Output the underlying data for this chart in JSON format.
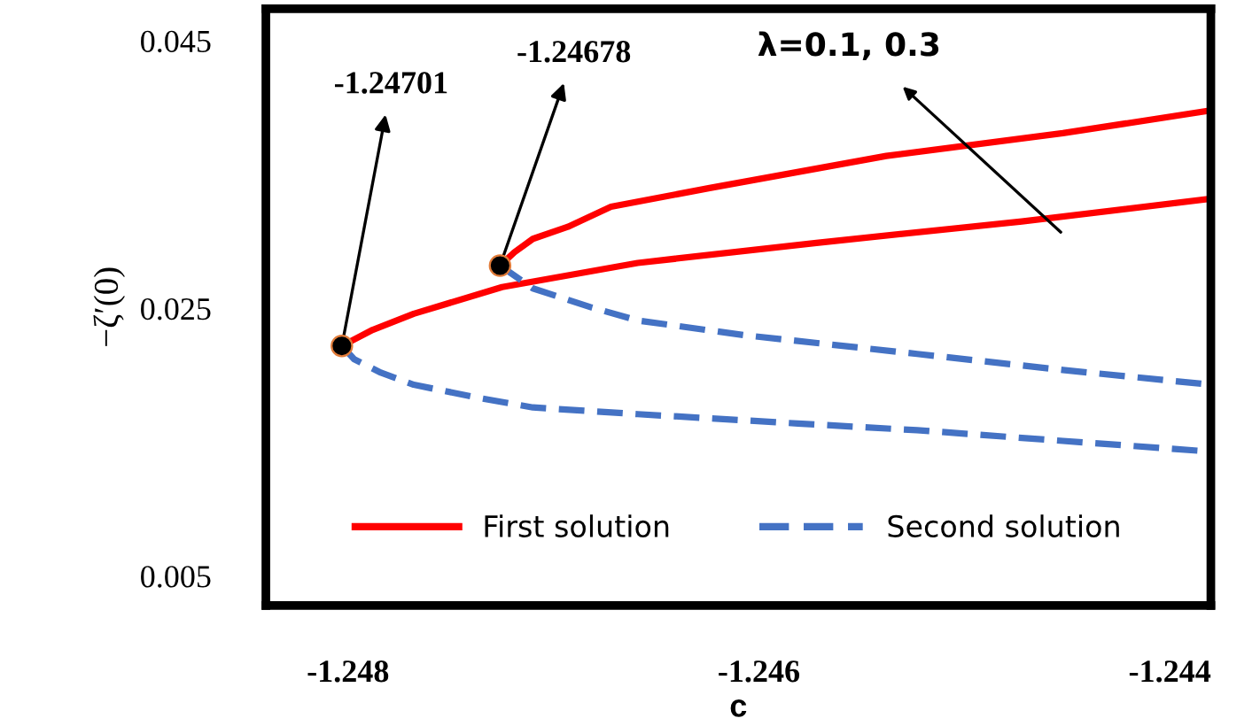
{
  "chart_data": {
    "type": "line",
    "xlabel": "c",
    "ylabel": "−ζ′(0)",
    "xlim": [
      -1.2484,
      -1.2438
    ],
    "xticks": [
      -1.248,
      -1.246,
      -1.244
    ],
    "ylim": [
      0.0028,
      0.0474
    ],
    "yticks": [
      0.045,
      0.025,
      0.005
    ],
    "series": [
      {
        "name": "First solution",
        "color": "#ff0000",
        "line_style": "solid",
        "x": [
          -1.24803,
          -1.24788,
          -1.24768,
          -1.24725,
          -1.24659,
          -1.24572,
          -1.24472,
          -1.2438
        ],
        "values": [
          0.0222,
          0.0234,
          0.0246,
          0.0266,
          0.0284,
          0.0299,
          0.0315,
          0.0332
        ]
      },
      {
        "color": "#ff0000",
        "line_style": "solid",
        "x": [
          -1.24726,
          -1.24719,
          -1.2471,
          -1.24693,
          -1.24672,
          -1.24624,
          -1.24538,
          -1.24452,
          -1.2438
        ],
        "values": [
          0.0282,
          0.0292,
          0.0302,
          0.0311,
          0.0326,
          0.034,
          0.0364,
          0.0381,
          0.0398
        ]
      },
      {
        "name": "Second solution",
        "color": "#4472c4",
        "line_style": "dashed",
        "x": [
          -1.24803,
          -1.24797,
          -1.24784,
          -1.24768,
          -1.24736,
          -1.2471,
          -1.24659,
          -1.24581,
          -1.24523,
          -1.24452,
          -1.2438
        ],
        "values": [
          0.0222,
          0.0212,
          0.0202,
          0.0193,
          0.0183,
          0.0176,
          0.0171,
          0.0164,
          0.0159,
          0.0151,
          0.0143
        ]
      },
      {
        "color": "#4472c4",
        "line_style": "dashed",
        "x": [
          -1.24726,
          -1.2471,
          -1.24682,
          -1.24659,
          -1.24607,
          -1.24523,
          -1.24452,
          -1.2438
        ],
        "values": [
          0.0282,
          0.0265,
          0.0251,
          0.0241,
          0.023,
          0.0216,
          0.0204,
          0.0193
        ]
      },
      {
        "type": "scatter",
        "color": "#000000",
        "marker": "circle",
        "x": [
          -1.24803,
          -1.24726
        ],
        "values": [
          0.0222,
          0.0282
        ]
      }
    ],
    "annotations": [
      {
        "text": "-1.24701",
        "x": -1.24803,
        "y": 0.0222
      },
      {
        "text": "-1.24678",
        "x": -1.24726,
        "y": 0.0282
      },
      "λ=0.1, 0.3"
    ],
    "legend": "bottom",
    "grid": false
  }
}
